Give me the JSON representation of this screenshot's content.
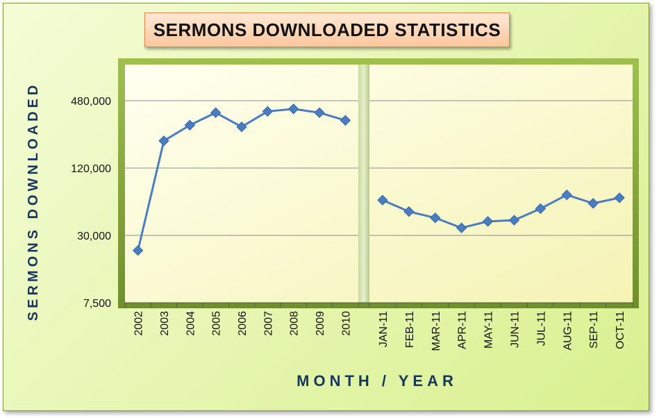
{
  "title": "SERMONS DOWNLOADED STATISTICS",
  "chart_data": {
    "type": "line",
    "title": "SERMONS DOWNLOADED STATISTICS",
    "xlabel": "MONTH / YEAR",
    "ylabel": "SERMONS DOWNLOADED",
    "yscale": "log",
    "ylim": [
      7500,
      1000000
    ],
    "yticks": [
      7500,
      30000,
      120000,
      480000
    ],
    "ytick_labels": [
      "7,500",
      "30,000",
      "120,000",
      "480,000"
    ],
    "grid": true,
    "legend": "none",
    "line_color": "#4a7cc0",
    "panels": [
      {
        "categories": [
          "2002",
          "2003",
          "2004",
          "2005",
          "2006",
          "2007",
          "2008",
          "2009",
          "2010"
        ],
        "values": [
          22000,
          210000,
          290000,
          375000,
          280000,
          385000,
          405000,
          375000,
          320000
        ]
      },
      {
        "categories": [
          "JAN-11",
          "FEB-11",
          "MAR-11",
          "APR-11",
          "MAY-11",
          "JUN-11",
          "JUL-11",
          "AUG-11",
          "SEP-11",
          "OCT-11"
        ],
        "values": [
          62000,
          49000,
          43000,
          35000,
          40000,
          41000,
          52000,
          69000,
          58000,
          65000
        ]
      }
    ]
  }
}
